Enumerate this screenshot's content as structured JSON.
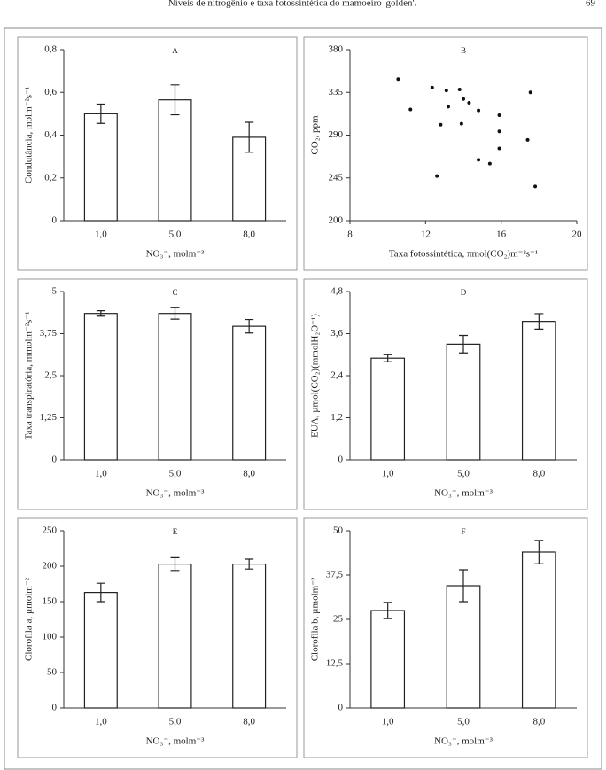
{
  "header": {
    "title": "Níveis de nitrogênio e taxa fotossintética do mamoeiro 'golden'.",
    "page": "69"
  },
  "chart_data": [
    {
      "type": "bar",
      "title": "A",
      "ylabel": "Condutância, molm⁻²s⁻¹",
      "xlabel": "NO₃⁻, molm⁻³",
      "categories": [
        "1,0",
        "5,0",
        "8,0"
      ],
      "values": [
        0.5,
        0.565,
        0.39
      ],
      "errors": [
        0.045,
        0.07,
        0.07
      ],
      "ylim": [
        0,
        0.8
      ],
      "yticks": [
        0,
        {
          "value": 0.2,
          "label": "0,2"
        },
        {
          "value": 0.4,
          "label": "0,4"
        },
        {
          "value": 0.6,
          "label": "0,6"
        },
        {
          "value": 0.8,
          "label": "0,8"
        }
      ],
      "color": "#ffffff"
    },
    {
      "type": "scatter",
      "title": "B",
      "ylabel": "CO₂, ppm",
      "xlabel": "Taxa fotossintética,   πmol(CO₂)m⁻²s⁻¹",
      "x": [
        10.55,
        11.2,
        12.35,
        13.1,
        13.8,
        14.0,
        14.3,
        13.2,
        12.8,
        13.9,
        14.8,
        15.9,
        15.9,
        15.9,
        14.8,
        15.4,
        12.6,
        17.55,
        17.4,
        17.8
      ],
      "y": [
        349,
        317,
        340,
        337,
        338,
        328,
        324,
        320,
        301,
        302,
        316,
        311,
        294,
        276,
        264,
        260,
        247,
        335,
        285,
        236
      ],
      "xlim": [
        8,
        20
      ],
      "xticks": [
        8,
        12,
        16,
        20
      ],
      "ylim": [
        200,
        380
      ],
      "yticks": [
        200,
        245,
        290,
        335,
        380
      ],
      "color": "#111111"
    },
    {
      "type": "bar",
      "title": "C",
      "ylabel": "Taxa transpiratória, mmolm⁻²s⁻¹",
      "xlabel": "NO₃⁻, molm⁻³",
      "categories": [
        "1,0",
        "5,0",
        "8,0"
      ],
      "values": [
        4.35,
        4.35,
        3.97
      ],
      "errors": [
        0.08,
        0.17,
        0.2
      ],
      "ylim": [
        0,
        5
      ],
      "yticks": [
        0,
        {
          "value": 1.25,
          "label": "1,25"
        },
        {
          "value": 2.5,
          "label": "2,5"
        },
        {
          "value": 3.75,
          "label": "3,75"
        },
        5
      ],
      "color": "#ffffff"
    },
    {
      "type": "bar",
      "title": "D",
      "ylabel": "EUA, µmol(CO₂)(mmolH₂O⁻¹)",
      "xlabel": "NO₃⁻, molm⁻³",
      "categories": [
        "1,0",
        "5,0",
        "8,0"
      ],
      "values": [
        2.9,
        3.3,
        3.95
      ],
      "errors": [
        0.1,
        0.25,
        0.22
      ],
      "ylim": [
        0,
        4.8
      ],
      "yticks": [
        0,
        {
          "value": 1.2,
          "label": "1,2"
        },
        {
          "value": 2.4,
          "label": "2,4"
        },
        {
          "value": 3.6,
          "label": "3,6"
        },
        {
          "value": 4.8,
          "label": "4,8"
        }
      ],
      "color": "#ffffff"
    },
    {
      "type": "bar",
      "title": "E",
      "ylabel": "Clorofila a, µmolm⁻²",
      "xlabel": "NO₃⁻, molm⁻³",
      "categories": [
        "1,0",
        "5,0",
        "8,0"
      ],
      "values": [
        163,
        203,
        203
      ],
      "errors": [
        13,
        9,
        7
      ],
      "ylim": [
        0,
        250
      ],
      "yticks": [
        0,
        50,
        100,
        150,
        200,
        250
      ],
      "color": "#ffffff"
    },
    {
      "type": "bar",
      "title": "F",
      "ylabel": "Clorofila b,  µmolm⁻²",
      "xlabel": "NO₃⁻, molm⁻³",
      "categories": [
        "1,0",
        "5,0",
        "8,0"
      ],
      "values": [
        27.5,
        34.5,
        44
      ],
      "errors": [
        2.3,
        4.5,
        3.3
      ],
      "ylim": [
        0,
        50
      ],
      "yticks": [
        0,
        {
          "value": 12.5,
          "label": "12,5"
        },
        25,
        {
          "value": 37.5,
          "label": "37,5"
        },
        50
      ],
      "color": "#ffffff"
    }
  ]
}
